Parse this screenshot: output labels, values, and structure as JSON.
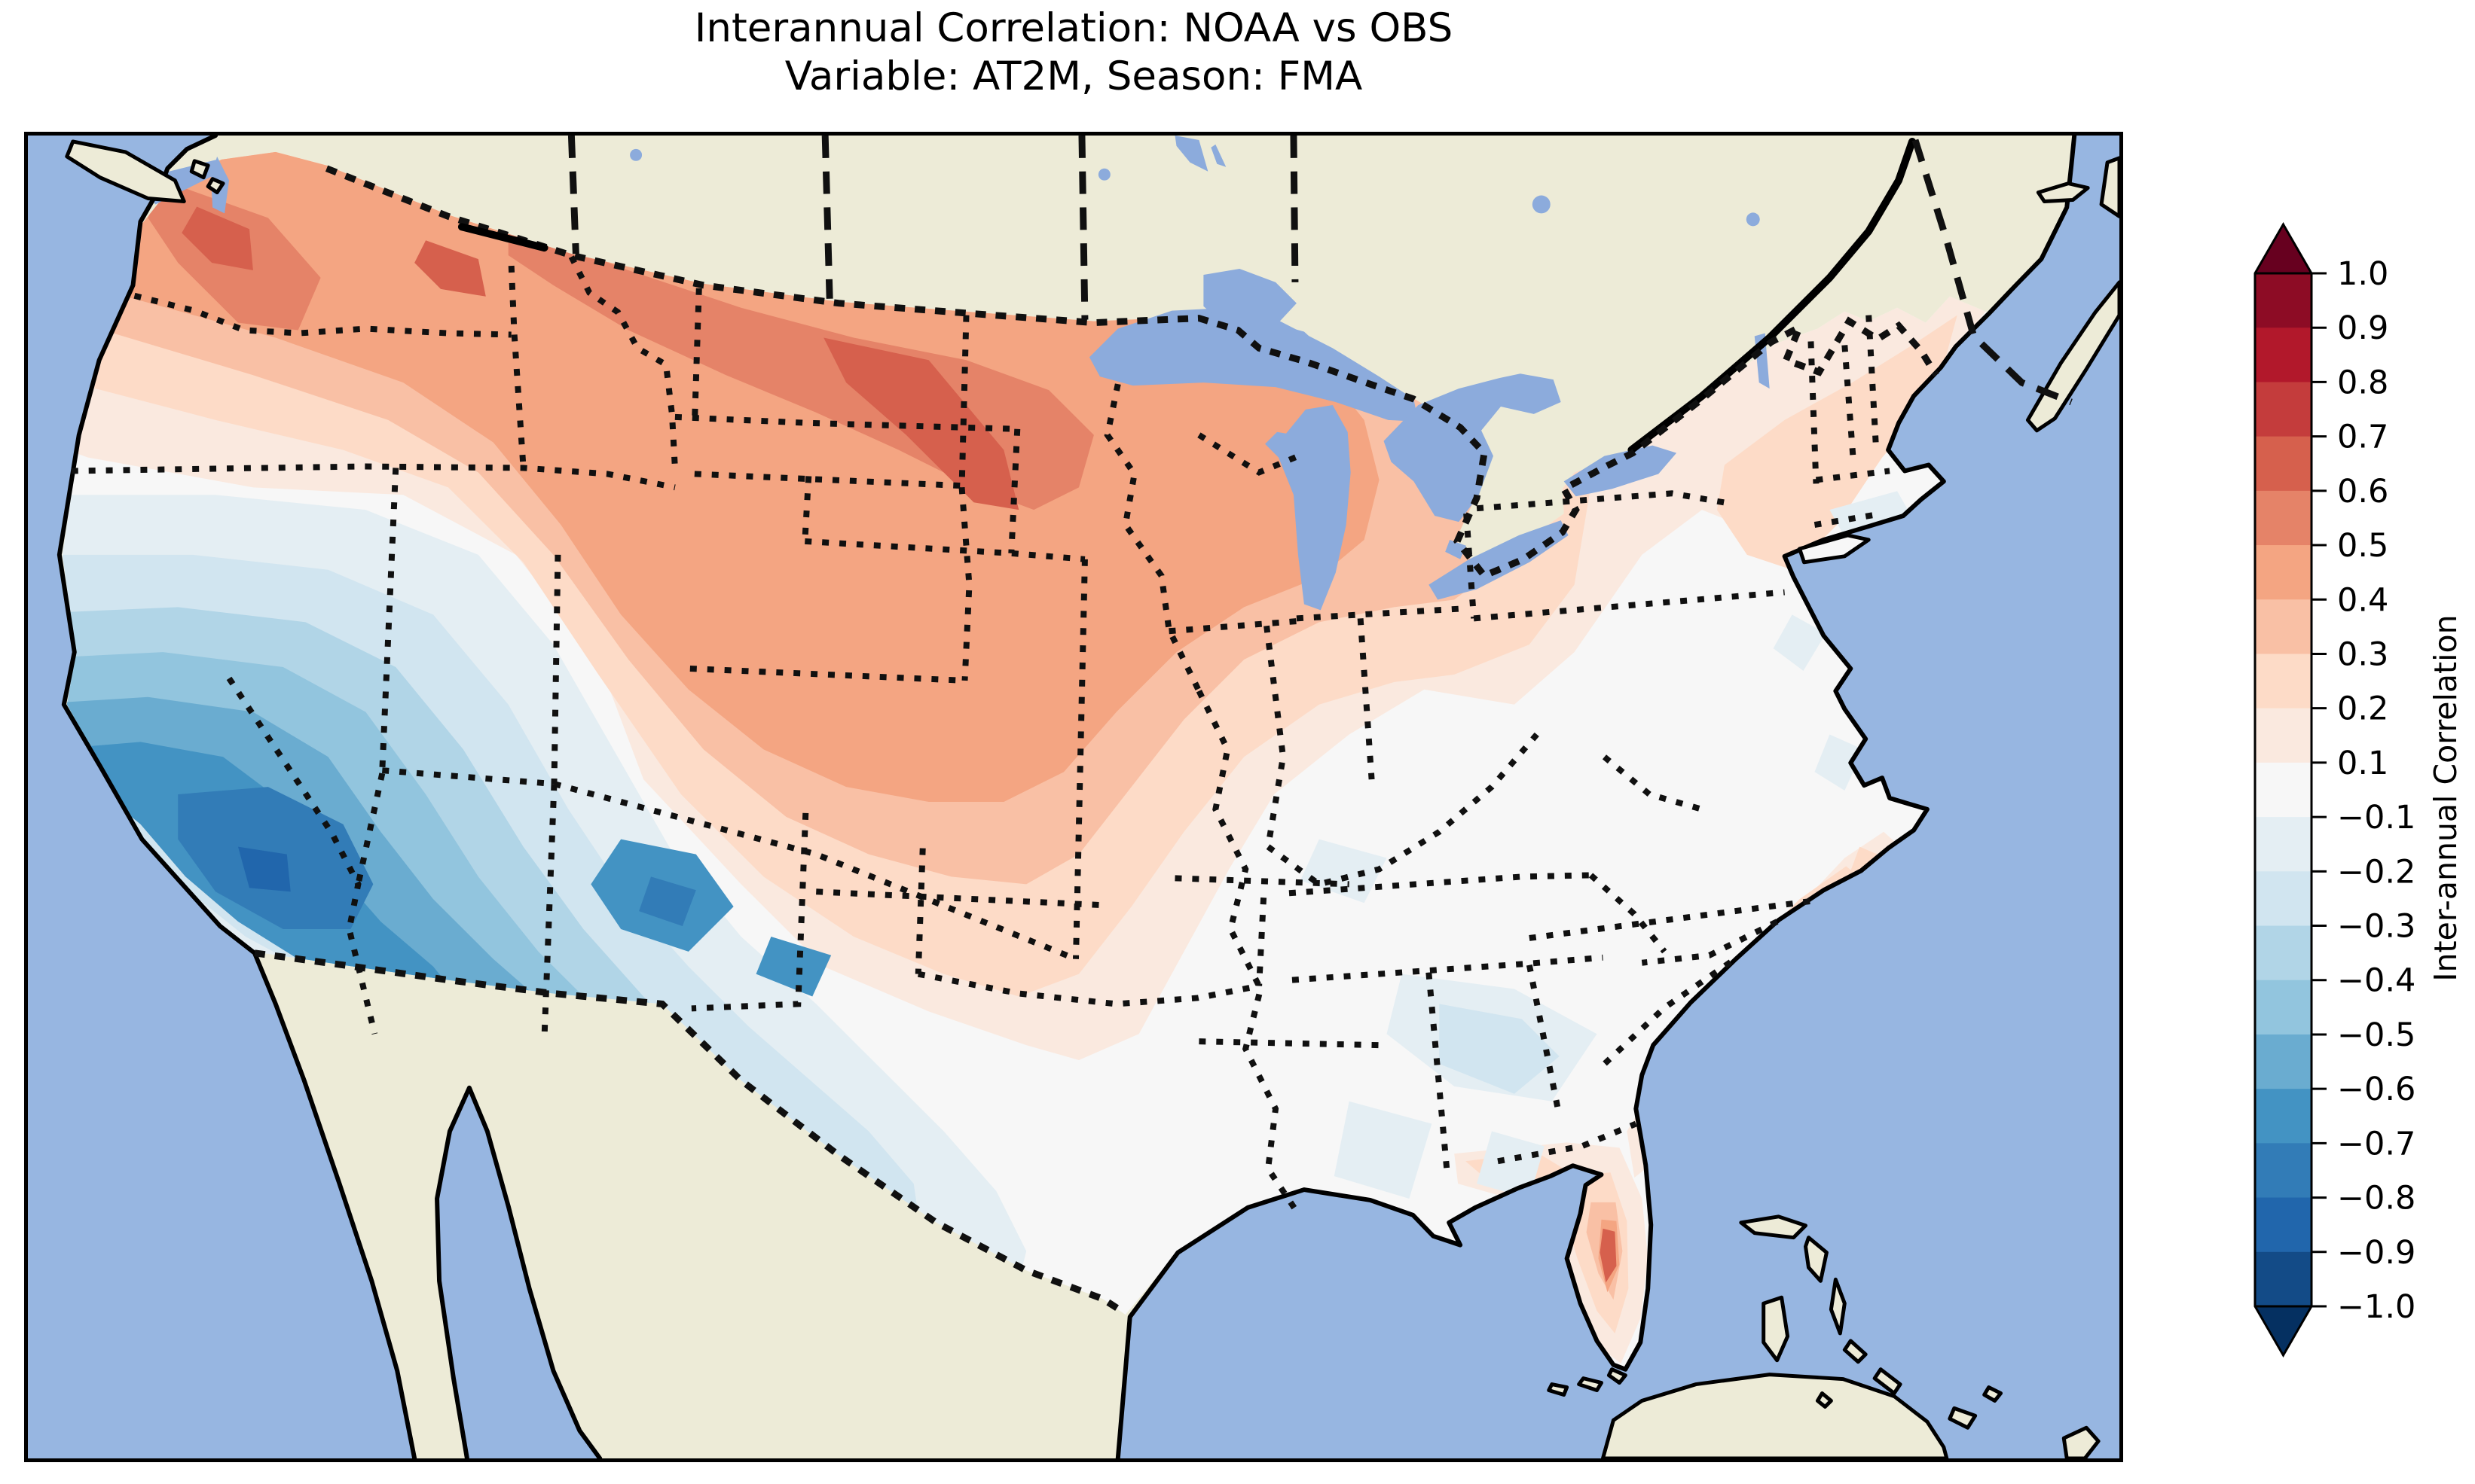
{
  "title": {
    "line1": "Interannual Correlation: NOAA vs OBS",
    "line2": "Variable: AT2M, Season: FMA"
  },
  "colorbar": {
    "label": "Inter-annual Correlation",
    "ticks": [
      "1.0",
      "0.9",
      "0.8",
      "0.7",
      "0.6",
      "0.5",
      "0.4",
      "0.3",
      "0.2",
      "0.1",
      "−0.1",
      "−0.2",
      "−0.3",
      "−0.4",
      "−0.5",
      "−0.6",
      "−0.7",
      "−0.8",
      "−0.9",
      "−1.0"
    ],
    "extend": "both",
    "extend_over_color": "#67001f",
    "extend_under_color": "#053061",
    "bands": [
      {
        "range": "0.9 to 1.0",
        "color": "#8d0c25"
      },
      {
        "range": "0.8 to 0.9",
        "color": "#b2182b"
      },
      {
        "range": "0.7 to 0.8",
        "color": "#c43c3c"
      },
      {
        "range": "0.6 to 0.7",
        "color": "#d6604d"
      },
      {
        "range": "0.5 to 0.6",
        "color": "#e58368"
      },
      {
        "range": "0.4 to 0.5",
        "color": "#f4a582"
      },
      {
        "range": "0.3 to 0.4",
        "color": "#f9c0a5"
      },
      {
        "range": "0.2 to 0.3",
        "color": "#fddbc7"
      },
      {
        "range": "0.1 to 0.2",
        "color": "#fae9df"
      },
      {
        "range": "-0.1 to 0.1",
        "color": "#f7f7f7"
      },
      {
        "range": "-0.2 to -0.1",
        "color": "#e4eef3"
      },
      {
        "range": "-0.3 to -0.2",
        "color": "#d1e5f0"
      },
      {
        "range": "-0.4 to -0.3",
        "color": "#b1d5e7"
      },
      {
        "range": "-0.5 to -0.4",
        "color": "#92c5de"
      },
      {
        "range": "-0.6 to -0.5",
        "color": "#6aacd0"
      },
      {
        "range": "-0.7 to -0.6",
        "color": "#4393c3"
      },
      {
        "range": "-0.8 to -0.7",
        "color": "#327cb7"
      },
      {
        "range": "-0.9 to -0.8",
        "color": "#2166ac"
      },
      {
        "range": "-1.0 to -0.9",
        "color": "#134b87"
      }
    ]
  },
  "colors": {
    "background": "#ffffff",
    "ocean": "#97b6e1",
    "land": "#edebd7",
    "lake": "#8cabdc",
    "coastline": "#000000",
    "frame": "#000000"
  },
  "chart_data": {
    "type": "heatmap",
    "subtype": "filled-contour-correlation-map",
    "title": "Interannual Correlation: NOAA vs OBS",
    "subtitle": "Variable: AT2M, Season: FMA",
    "colorbar_label": "Inter-annual Correlation",
    "colormap": "RdBu_r (discrete)",
    "levels": [
      -1.0,
      -0.9,
      -0.8,
      -0.7,
      -0.6,
      -0.5,
      -0.4,
      -0.3,
      -0.2,
      -0.1,
      0.1,
      0.2,
      0.3,
      0.4,
      0.5,
      0.6,
      0.7,
      0.8,
      0.9,
      1.0
    ],
    "extend": "both",
    "domain_shown": "Contiguous United States with surrounding Canada, Mexico, Gulf of Mexico, Caribbean and Atlantic",
    "region_values_approx": {
      "pacific_northwest_washington": [
        0.4,
        0.7
      ],
      "oregon_idaho": [
        0.3,
        0.6
      ],
      "montana_north_dakota": [
        0.4,
        0.6
      ],
      "minnesota_wisconsin": [
        0.3,
        0.6
      ],
      "great_lakes_michigan": [
        0.2,
        0.4
      ],
      "ohio_valley_midwest": [
        0.1,
        0.3
      ],
      "nebraska_iowa_plains": [
        0.1,
        0.3
      ],
      "northeast_interior_vt_nh_ny": [
        0.1,
        0.3
      ],
      "new_england_coast": [
        -0.1,
        0.1
      ],
      "mid_atlantic": [
        -0.1,
        0.1
      ],
      "appalachians_southeast_interior": [
        -0.1,
        0.1
      ],
      "tennessee_valley_gulf_states": [
        -0.3,
        -0.1
      ],
      "carolinas_coast": [
        0.1,
        0.4
      ],
      "florida_peninsula": [
        0.3,
        0.7
      ],
      "texas": [
        -0.4,
        -0.1
      ],
      "southern_plains_kansas_oklahoma": [
        -0.5,
        -0.2
      ],
      "new_mexico_colorado": [
        -0.7,
        -0.4
      ],
      "arizona_southern_california_nevada": [
        -0.8,
        -0.5
      ],
      "california_coast": [
        -0.2,
        0.1
      ]
    }
  }
}
